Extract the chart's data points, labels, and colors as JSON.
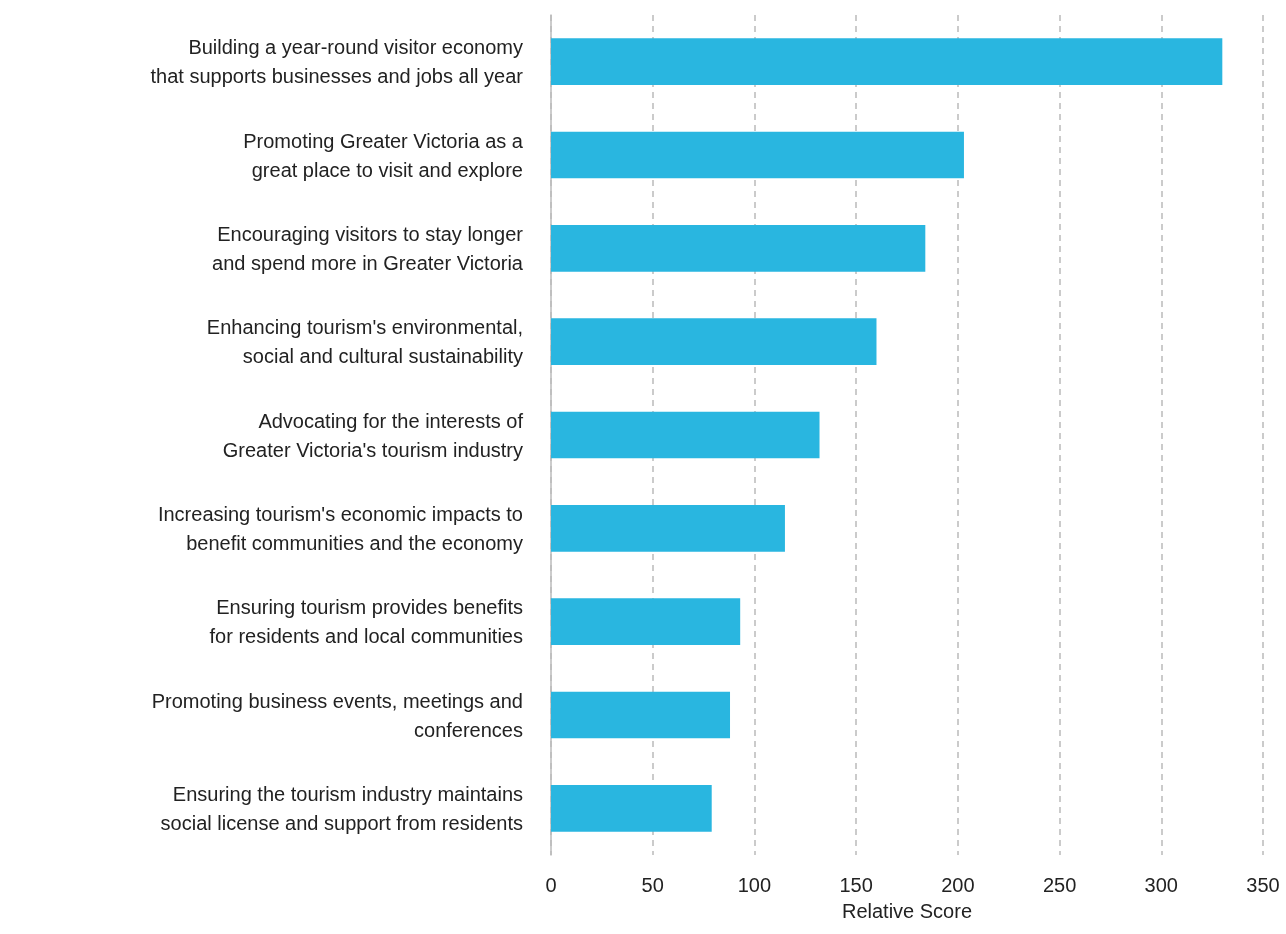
{
  "chart_data": {
    "type": "bar",
    "orientation": "horizontal",
    "xlabel": "Relative Score",
    "categories": [
      "Building a year-round visitor economy\nthat supports businesses and jobs all year",
      "Promoting Greater Victoria as a\ngreat place to visit and explore",
      "Encouraging visitors to stay longer\nand spend more in Greater Victoria",
      "Enhancing tourism's environmental,\nsocial and cultural sustainability",
      "Advocating for the interests of\nGreater Victoria's tourism industry",
      "Increasing tourism's economic impacts to\nbenefit communities and the economy",
      "Ensuring tourism provides benefits\nfor residents and local communities",
      "Promoting business events, meetings and\nconferences",
      "Ensuring the tourism industry maintains\nsocial license and support from residents"
    ],
    "values": [
      330,
      203,
      184,
      160,
      132,
      115,
      93,
      88,
      79
    ],
    "color": "#29b6e0",
    "xlim": [
      0,
      350
    ],
    "xticks": [
      0,
      50,
      100,
      150,
      200,
      250,
      300,
      350
    ],
    "grid": "x"
  }
}
